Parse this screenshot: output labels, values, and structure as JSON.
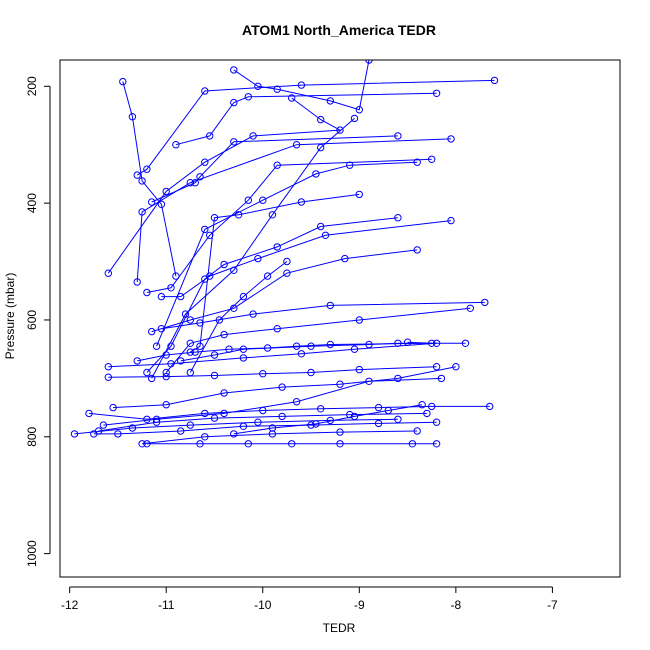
{
  "chart_data": {
    "type": "line",
    "title": "ATOM1 North_America TEDR",
    "xlabel": "TEDR",
    "ylabel": "Pressure (mbar)",
    "xlim": [
      -12.1,
      -6.3
    ],
    "ylim": [
      1040,
      155
    ],
    "y_axis_inverted": true,
    "xticks": [
      -12,
      -11,
      -10,
      -9,
      -8,
      -7
    ],
    "xtick_labels": [
      "-12",
      "-11",
      "-10",
      "-9",
      "-8",
      "-7"
    ],
    "yticks": [
      200,
      400,
      600,
      800,
      1000
    ],
    "ytick_labels": [
      "200",
      "400",
      "600",
      "800",
      "1000"
    ],
    "grid": false,
    "color": "#0000ff",
    "markers": "open-circle",
    "series": [
      {
        "x": [
          -11.45,
          -11.35,
          -11.25,
          -11.05,
          -10.9
        ],
        "y": [
          192,
          252,
          362,
          402,
          525
        ]
      },
      {
        "x": [
          -7.6,
          -9.6,
          -10.6,
          -11.2,
          -11.3
        ],
        "y": [
          190,
          198,
          208,
          342,
          352
        ]
      },
      {
        "x": [
          -10.3,
          -10.05,
          -9.85,
          -9.3,
          -9.0,
          -8.9
        ],
        "y": [
          172,
          200,
          205,
          225,
          240,
          155
        ]
      },
      {
        "x": [
          -8.2,
          -10.15,
          -10.3,
          -10.55,
          -10.9
        ],
        "y": [
          212,
          218,
          228,
          285,
          300
        ]
      },
      {
        "x": [
          -9.7,
          -9.4,
          -9.2,
          -10.1,
          -10.6,
          -11.0,
          -11.6
        ],
        "y": [
          220,
          257,
          275,
          285,
          330,
          380,
          520
        ]
      },
      {
        "x": [
          -8.6,
          -10.3,
          -10.65,
          -10.7,
          -11.15
        ],
        "y": [
          285,
          295,
          355,
          365,
          398
        ]
      },
      {
        "x": [
          -8.05,
          -9.65,
          -10.75,
          -11.25,
          -11.3
        ],
        "y": [
          290,
          300,
          365,
          415,
          535
        ]
      },
      {
        "x": [
          -8.25,
          -9.85,
          -10.15,
          -10.55,
          -10.95,
          -11.2
        ],
        "y": [
          325,
          335,
          395,
          455,
          545,
          553
        ]
      },
      {
        "x": [
          -8.4,
          -9.1,
          -9.45,
          -10.0,
          -10.6,
          -11.1
        ],
        "y": [
          330,
          335,
          350,
          395,
          445,
          645
        ]
      },
      {
        "x": [
          -9.0,
          -9.6,
          -10.25,
          -10.5,
          -10.65,
          -10.75
        ],
        "y": [
          385,
          398,
          420,
          425,
          645,
          655
        ]
      },
      {
        "x": [
          -8.6,
          -9.4,
          -9.85,
          -10.4,
          -10.6,
          -10.95,
          -11.2
        ],
        "y": [
          425,
          440,
          475,
          505,
          530,
          645,
          690
        ]
      },
      {
        "x": [
          -8.05,
          -9.35,
          -10.05,
          -10.55,
          -10.85,
          -11.05
        ],
        "y": [
          430,
          455,
          495,
          525,
          560,
          560
        ]
      },
      {
        "x": [
          -8.4,
          -9.15,
          -9.75,
          -10.3,
          -10.75,
          -11.15
        ],
        "y": [
          480,
          495,
          520,
          580,
          600,
          620
        ]
      },
      {
        "x": [
          -7.7,
          -9.3,
          -10.1,
          -10.65,
          -11.05
        ],
        "y": [
          570,
          575,
          590,
          605,
          615
        ]
      },
      {
        "x": [
          -7.85,
          -9.0,
          -9.85,
          -10.4,
          -10.75,
          -11.0
        ],
        "y": [
          580,
          600,
          615,
          625,
          640,
          690
        ]
      },
      {
        "x": [
          -7.9,
          -8.6,
          -8.9,
          -9.5,
          -10.2,
          -10.5,
          -10.85
        ],
        "y": [
          640,
          640,
          642,
          645,
          650,
          660,
          670
        ]
      },
      {
        "x": [
          -8.2,
          -9.05,
          -9.6,
          -10.2,
          -10.95,
          -11.6
        ],
        "y": [
          640,
          650,
          658,
          665,
          675,
          680
        ]
      },
      {
        "x": [
          -8.2,
          -9.0,
          -9.5,
          -10.0,
          -10.5,
          -11.0,
          -11.6
        ],
        "y": [
          680,
          685,
          690,
          692,
          695,
          697,
          698
        ]
      },
      {
        "x": [
          -8.0,
          -8.6,
          -9.2,
          -9.8,
          -10.4,
          -11.0,
          -11.55
        ],
        "y": [
          680,
          700,
          710,
          715,
          725,
          745,
          750
        ]
      },
      {
        "x": [
          -8.15,
          -8.9,
          -9.65,
          -10.4,
          -11.1,
          -11.65
        ],
        "y": [
          700,
          705,
          740,
          760,
          770,
          780
        ]
      },
      {
        "x": [
          -7.65,
          -8.25,
          -8.8,
          -9.4,
          -10.0,
          -10.6,
          -11.2,
          -11.8
        ],
        "y": [
          748,
          748,
          750,
          752,
          755,
          760,
          770,
          760
        ]
      },
      {
        "x": [
          -8.3,
          -9.1,
          -9.8,
          -10.5,
          -11.1,
          -11.7
        ],
        "y": [
          760,
          762,
          765,
          768,
          775,
          790
        ]
      },
      {
        "x": [
          -8.6,
          -9.3,
          -10.05,
          -10.75,
          -11.35,
          -11.95
        ],
        "y": [
          770,
          772,
          775,
          780,
          785,
          795
        ]
      },
      {
        "x": [
          -8.2,
          -8.8,
          -9.5,
          -10.2,
          -10.85,
          -11.5,
          -11.75
        ],
        "y": [
          775,
          777,
          780,
          782,
          790,
          795,
          795
        ]
      },
      {
        "x": [
          -8.4,
          -9.2,
          -9.9,
          -10.6,
          -11.25
        ],
        "y": [
          790,
          792,
          795,
          800,
          812
        ]
      },
      {
        "x": [
          -8.2,
          -8.45,
          -9.2,
          -9.7,
          -10.15,
          -10.65,
          -11.2
        ],
        "y": [
          812,
          812,
          812,
          812,
          812,
          812,
          812
        ]
      },
      {
        "x": [
          -8.5,
          -8.25,
          -9.3,
          -9.65,
          -9.95,
          -10.35,
          -10.7,
          -11.0,
          -11.3
        ],
        "y": [
          638,
          640,
          642,
          645,
          648,
          650,
          655,
          660,
          670
        ]
      },
      {
        "x": [
          -9.05,
          -9.4,
          -9.9,
          -10.3,
          -10.8,
          -11.15
        ],
        "y": [
          255,
          305,
          420,
          515,
          590,
          700
        ]
      },
      {
        "x": [
          -9.75,
          -9.95,
          -10.2,
          -10.45,
          -10.75
        ],
        "y": [
          500,
          525,
          560,
          600,
          690
        ]
      },
      {
        "x": [
          -8.35,
          -8.7,
          -9.05,
          -9.45,
          -9.9,
          -10.3
        ],
        "y": [
          745,
          755,
          765,
          778,
          785,
          795
        ]
      }
    ]
  }
}
